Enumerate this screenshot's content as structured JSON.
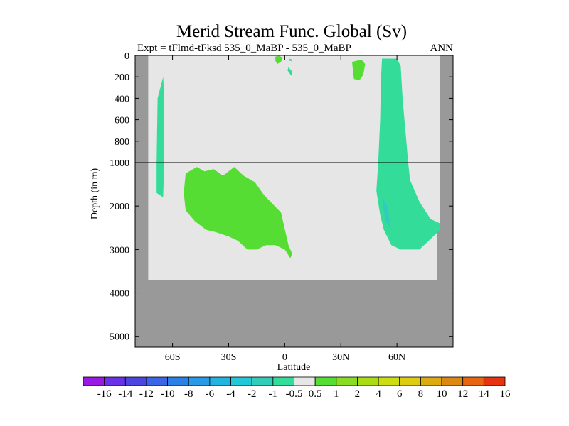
{
  "chart_data": {
    "type": "contour",
    "title": "Merid Stream Func. Global (Sv)",
    "subtitle_left": "Expt = tFlmd-tFksd 535_0_MaBP - 535_0_MaBP",
    "subtitle_right": "ANN",
    "xlabel": "Latitude",
    "ylabel": "Depth (in m)",
    "x_ticks": [
      {
        "value": -60,
        "label": "60S"
      },
      {
        "value": -30,
        "label": "30S"
      },
      {
        "value": 0,
        "label": "0"
      },
      {
        "value": 30,
        "label": "30N"
      },
      {
        "value": 60,
        "label": "60N"
      }
    ],
    "y_ticks_upper": [
      {
        "value": 0,
        "label": "0"
      },
      {
        "value": 200,
        "label": "200"
      },
      {
        "value": 400,
        "label": "400"
      },
      {
        "value": 600,
        "label": "600"
      },
      {
        "value": 800,
        "label": "800"
      },
      {
        "value": 1000,
        "label": "1000"
      }
    ],
    "y_ticks_lower": [
      {
        "value": 2000,
        "label": "2000"
      },
      {
        "value": 3000,
        "label": "3000"
      },
      {
        "value": 4000,
        "label": "4000"
      },
      {
        "value": 5000,
        "label": "5000"
      }
    ],
    "y_break": 1000,
    "y_upper_range": [
      0,
      1000
    ],
    "y_lower_range": [
      1000,
      5250
    ],
    "x_range": [
      -80,
      90
    ],
    "regions": [
      {
        "name": "southern-ocean-cell",
        "level": "-1 to -0.5",
        "color": "#33dd99",
        "points": [
          [
            -65,
            200
          ],
          [
            -64.5,
            400
          ],
          [
            -64.5,
            1000
          ],
          [
            -65,
            1800
          ],
          [
            -68.5,
            1700
          ],
          [
            -68.5,
            1000
          ],
          [
            -68,
            400
          ]
        ]
      },
      {
        "name": "southern-deep-cell",
        "level": "0.5 to 1",
        "color": "#55dd33",
        "points": [
          [
            -53,
            1250
          ],
          [
            -47,
            1100
          ],
          [
            -43,
            1200
          ],
          [
            -38,
            1150
          ],
          [
            -33,
            1300
          ],
          [
            -27,
            1100
          ],
          [
            -22,
            1300
          ],
          [
            -16,
            1450
          ],
          [
            -11,
            1750
          ],
          [
            -2,
            2150
          ],
          [
            2,
            2900
          ],
          [
            4,
            3100
          ],
          [
            3,
            3200
          ],
          [
            0,
            3000
          ],
          [
            -5,
            2900
          ],
          [
            -10,
            2900
          ],
          [
            -15,
            3000
          ],
          [
            -20,
            3000
          ],
          [
            -25,
            2800
          ],
          [
            -30,
            2700
          ],
          [
            -37,
            2600
          ],
          [
            -42,
            2550
          ],
          [
            -48,
            2350
          ],
          [
            -53,
            2100
          ],
          [
            -54,
            1700
          ]
        ]
      },
      {
        "name": "equatorial-blob-west",
        "level": "0.5 to 1",
        "color": "#55dd33",
        "points": [
          [
            -5,
            10
          ],
          [
            -3,
            5
          ],
          [
            -1,
            20
          ],
          [
            -2,
            60
          ],
          [
            -4,
            80
          ],
          [
            -5,
            50
          ]
        ]
      },
      {
        "name": "equatorial-blob-east",
        "level": "-1 to -0.5",
        "color": "#33dd99",
        "points": [
          [
            2,
            110
          ],
          [
            4,
            150
          ],
          [
            3.5,
            190
          ],
          [
            1.5,
            140
          ]
        ]
      },
      {
        "name": "equatorial-blob-tiny",
        "level": "-1 to -0.5",
        "color": "#33dd99",
        "points": [
          [
            2.5,
            30
          ],
          [
            4,
            40
          ],
          [
            3.5,
            55
          ],
          [
            2,
            45
          ]
        ]
      },
      {
        "name": "subpolar-north-blob",
        "level": "0.5 to 1",
        "color": "#55dd33",
        "points": [
          [
            36,
            60
          ],
          [
            41,
            40
          ],
          [
            43,
            80
          ],
          [
            42,
            180
          ],
          [
            40,
            230
          ],
          [
            37,
            220
          ]
        ]
      },
      {
        "name": "amoc-cell",
        "level": "-1 to -0.5",
        "color": "#33dd99",
        "points": [
          [
            52,
            30
          ],
          [
            60,
            30
          ],
          [
            62,
            100
          ],
          [
            63,
            400
          ],
          [
            65,
            800
          ],
          [
            66,
            1000
          ],
          [
            67,
            1400
          ],
          [
            72,
            1900
          ],
          [
            78,
            2300
          ],
          [
            83,
            2400
          ],
          [
            83,
            2550
          ],
          [
            77,
            2800
          ],
          [
            72,
            3000
          ],
          [
            68,
            3000
          ],
          [
            62,
            3000
          ],
          [
            57,
            2900
          ],
          [
            53,
            2550
          ],
          [
            51,
            2200
          ],
          [
            49,
            1650
          ],
          [
            50,
            1000
          ],
          [
            51,
            600
          ],
          [
            51.5,
            200
          ]
        ]
      },
      {
        "name": "amoc-core",
        "level": "-2 to -1",
        "color": "#33ccbb",
        "points": [
          [
            52,
            1800
          ],
          [
            55,
            2000
          ],
          [
            56,
            2300
          ],
          [
            56,
            2500
          ],
          [
            54,
            2350
          ],
          [
            52.5,
            2000
          ]
        ]
      }
    ],
    "land": {
      "color": "#999999",
      "fill_below_depth": 3700,
      "ocean_color": "#e6e6e6"
    },
    "colorbar": {
      "labels": [
        "-16",
        "-14",
        "-12",
        "-10",
        "-8",
        "-6",
        "-4",
        "-2",
        "-1",
        "-0.5",
        "0.5",
        "1",
        "2",
        "4",
        "6",
        "8",
        "10",
        "12",
        "14",
        "16"
      ],
      "colors": [
        "#9a19e3",
        "#6a32e8",
        "#4d45e0",
        "#3a66e6",
        "#2a81e6",
        "#2a99e6",
        "#22b4e0",
        "#22c8d8",
        "#33ccbb",
        "#33dd99",
        "#e6e6e6",
        "#55dd33",
        "#88dd22",
        "#aadd11",
        "#ccdd11",
        "#ddcc11",
        "#ddaa11",
        "#dd8811",
        "#e66611",
        "#e63311"
      ]
    }
  }
}
